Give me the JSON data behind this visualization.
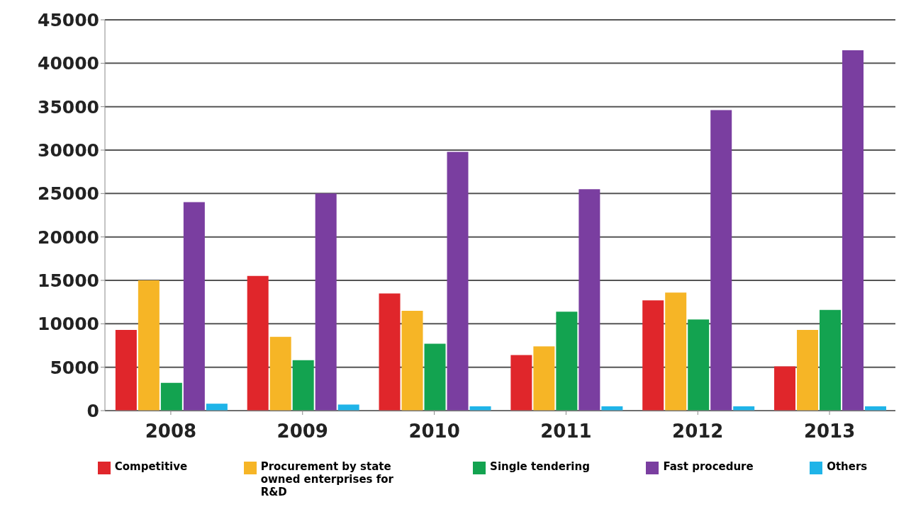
{
  "chart_data": {
    "type": "bar",
    "categories": [
      "2008",
      "2009",
      "2010",
      "2011",
      "2012",
      "2013"
    ],
    "series": [
      {
        "name": "Competitive",
        "color": "#e0262b",
        "values": [
          9300,
          15500,
          13500,
          6400,
          12700,
          5100
        ]
      },
      {
        "name": "Procurement by state owned enterprises for R&D",
        "color": "#f6b526",
        "values": [
          15000,
          8500,
          11500,
          7400,
          13600,
          9300
        ]
      },
      {
        "name": "Single tendering",
        "color": "#13a350",
        "values": [
          3200,
          5800,
          7700,
          11400,
          10500,
          11600
        ]
      },
      {
        "name": "Fast procedure",
        "color": "#7a3ea0",
        "values": [
          24000,
          25000,
          29800,
          25500,
          34600,
          41500
        ]
      },
      {
        "name": "Others",
        "color": "#1fb4e8",
        "values": [
          800,
          700,
          500,
          500,
          500,
          500
        ]
      }
    ],
    "ylim": [
      0,
      45000
    ],
    "yticks": [
      0,
      5000,
      10000,
      15000,
      20000,
      25000,
      30000,
      35000,
      40000,
      45000
    ],
    "grid": "y",
    "legend": "bottom"
  }
}
